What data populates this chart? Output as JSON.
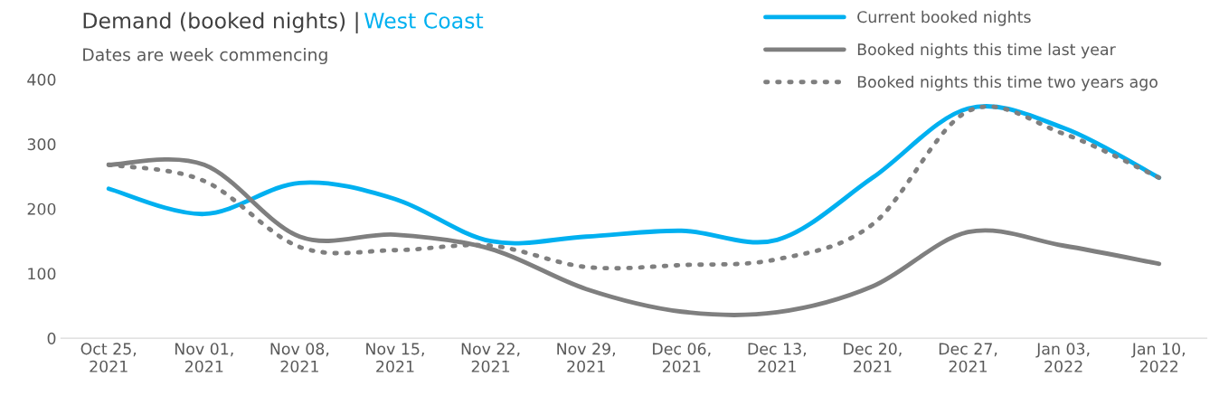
{
  "chart_data": {
    "type": "line",
    "title": "Demand (booked nights) | West Coast",
    "subtitle": "Dates are week commencing",
    "categories": [
      "Oct 25,\n2021",
      "Nov 01,\n2021",
      "Nov 08,\n2021",
      "Nov 15,\n2021",
      "Nov 22,\n2021",
      "Nov 29,\n2021",
      "Dec 06,\n2021",
      "Dec 13,\n2021",
      "Dec 20,\n2021",
      "Dec 27,\n2021",
      "Jan 03,\n2022",
      "Jan 10,\n2022"
    ],
    "series": [
      {
        "name": "Current booked nights",
        "color": "#00b0f0",
        "line_style": "solid",
        "values": [
          231,
          192,
          240,
          215,
          150,
          157,
          166,
          152,
          248,
          355,
          325,
          248
        ]
      },
      {
        "name": "Booked nights this time last year",
        "color": "#7f7f7f",
        "line_style": "solid",
        "values": [
          268,
          268,
          157,
          160,
          138,
          76,
          41,
          40,
          80,
          164,
          143,
          115
        ]
      },
      {
        "name": "Booked nights this time two years ago",
        "color": "#7f7f7f",
        "line_style": "dotted",
        "values": [
          268,
          243,
          141,
          136,
          143,
          110,
          113,
          122,
          176,
          351,
          316,
          248
        ]
      }
    ],
    "ylim": [
      0,
      400
    ],
    "yticks": [
      0,
      100,
      200,
      300,
      400
    ],
    "grid": false,
    "legend": "top right",
    "marker": "none"
  }
}
